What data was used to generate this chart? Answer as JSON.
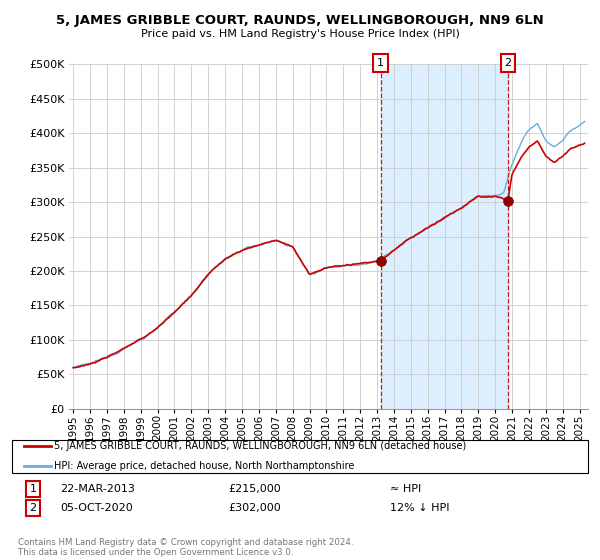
{
  "title": "5, JAMES GRIBBLE COURT, RAUNDS, WELLINGBOROUGH, NN9 6LN",
  "subtitle": "Price paid vs. HM Land Registry's House Price Index (HPI)",
  "ylim": [
    0,
    500000
  ],
  "yticks": [
    0,
    50000,
    100000,
    150000,
    200000,
    250000,
    300000,
    350000,
    400000,
    450000,
    500000
  ],
  "xlim_start": 1994.75,
  "xlim_end": 2025.5,
  "hpi_color": "#6baed6",
  "price_color": "#cc0000",
  "shade_color": "#ddeeff",
  "transaction_1": {
    "date": "22-MAR-2013",
    "price": 215000,
    "label": "1",
    "year": 2013.22
  },
  "transaction_2": {
    "date": "05-OCT-2020",
    "price": 302000,
    "label": "2",
    "year": 2020.76
  },
  "legend_line1": "5, JAMES GRIBBLE COURT, RAUNDS, WELLINGBOROUGH, NN9 6LN (detached house)",
  "legend_line2": "HPI: Average price, detached house, North Northamptonshire",
  "footnote": "Contains HM Land Registry data © Crown copyright and database right 2024.\nThis data is licensed under the Open Government Licence v3.0.",
  "annotation1_text": "≈ HPI",
  "annotation2_text": "12% ↓ HPI",
  "dashed_line_color": "#cc0000",
  "background_color": "#ffffff",
  "grid_color": "#cccccc"
}
